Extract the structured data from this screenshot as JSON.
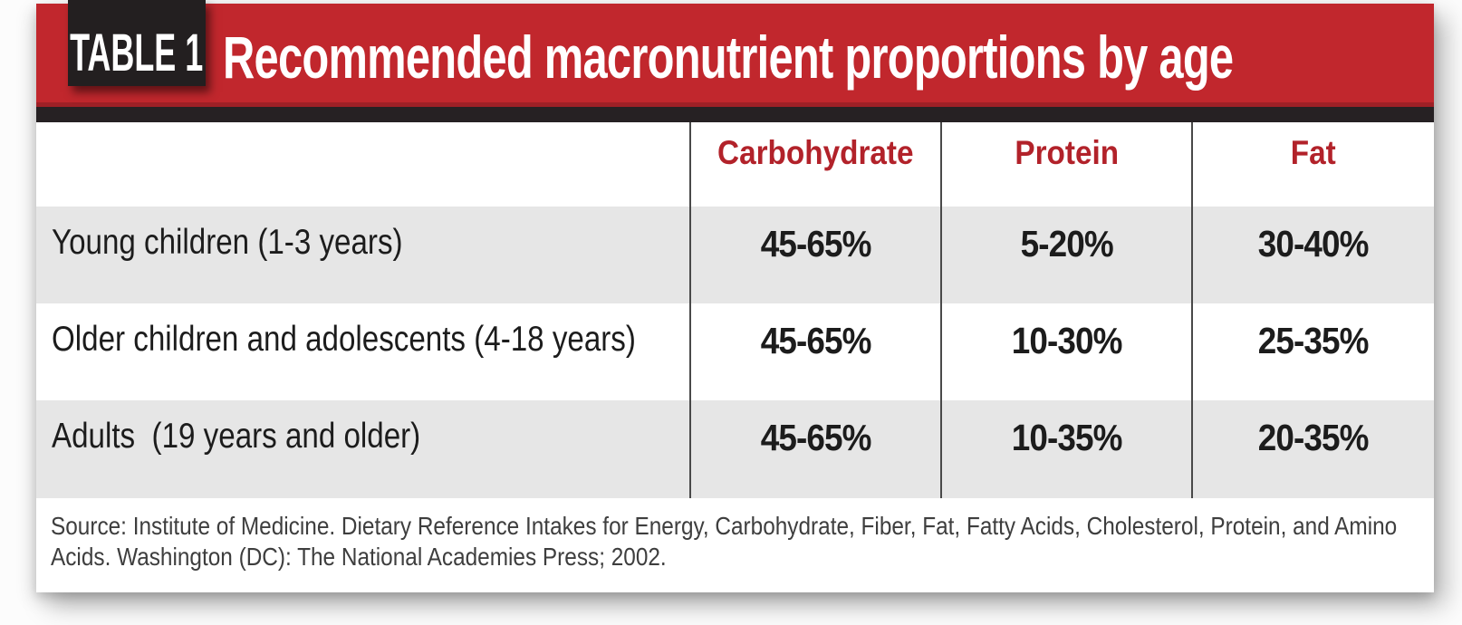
{
  "banner": {
    "tag_label": "TABLE 1",
    "title": "Recommended macronutrient proportions by age",
    "red_color": "#c1272d",
    "tag_background": "#231f20",
    "strip_color": "#262123"
  },
  "table": {
    "columns": [
      "Carbohydrate",
      "Protein",
      "Fat"
    ],
    "header_text_color": "#b2222a",
    "stripe_color": "#e6e6e6",
    "rows": [
      {
        "label": "Young children (1-3 years)",
        "values": [
          "45-65%",
          "5-20%",
          "30-40%"
        ]
      },
      {
        "label": "Older children and adolescents (4-18 years)",
        "values": [
          "45-65%",
          "10-30%",
          "25-35%"
        ]
      },
      {
        "label": "Adults  (19 years and older)",
        "values": [
          "45-65%",
          "10-35%",
          "20-35%"
        ]
      }
    ]
  },
  "source": {
    "line1": "Source: Institute of Medicine. Dietary Reference Intakes for Energy, Carbohydrate, Fiber, Fat, Fatty Acids, Cholesterol, Protein, and Amino",
    "line2": "Acids. Washington (DC): The National Academies Press; 2002."
  },
  "chart_data": {
    "type": "table",
    "table_number": "TABLE 1",
    "title": "Recommended macronutrient proportions by age",
    "columns": [
      "",
      "Carbohydrate",
      "Protein",
      "Fat"
    ],
    "rows": [
      [
        "Young children (1-3 years)",
        "45-65%",
        "5-20%",
        "30-40%"
      ],
      [
        "Older children and adolescents (4-18 years)",
        "45-65%",
        "10-30%",
        "25-35%"
      ],
      [
        "Adults (19 years and older)",
        "45-65%",
        "10-35%",
        "20-35%"
      ]
    ],
    "source": "Source: Institute of Medicine. Dietary Reference Intakes for Energy, Carbohydrate, Fiber, Fat, Fatty Acids, Cholesterol, Protein, and Amino Acids. Washington (DC): The National Academies Press; 2002.",
    "layout": {
      "header_style": "red bold text on white",
      "row_striping": "alternating gray/white starting gray",
      "column_dividers": "thin dark vertical rules between value columns"
    }
  }
}
